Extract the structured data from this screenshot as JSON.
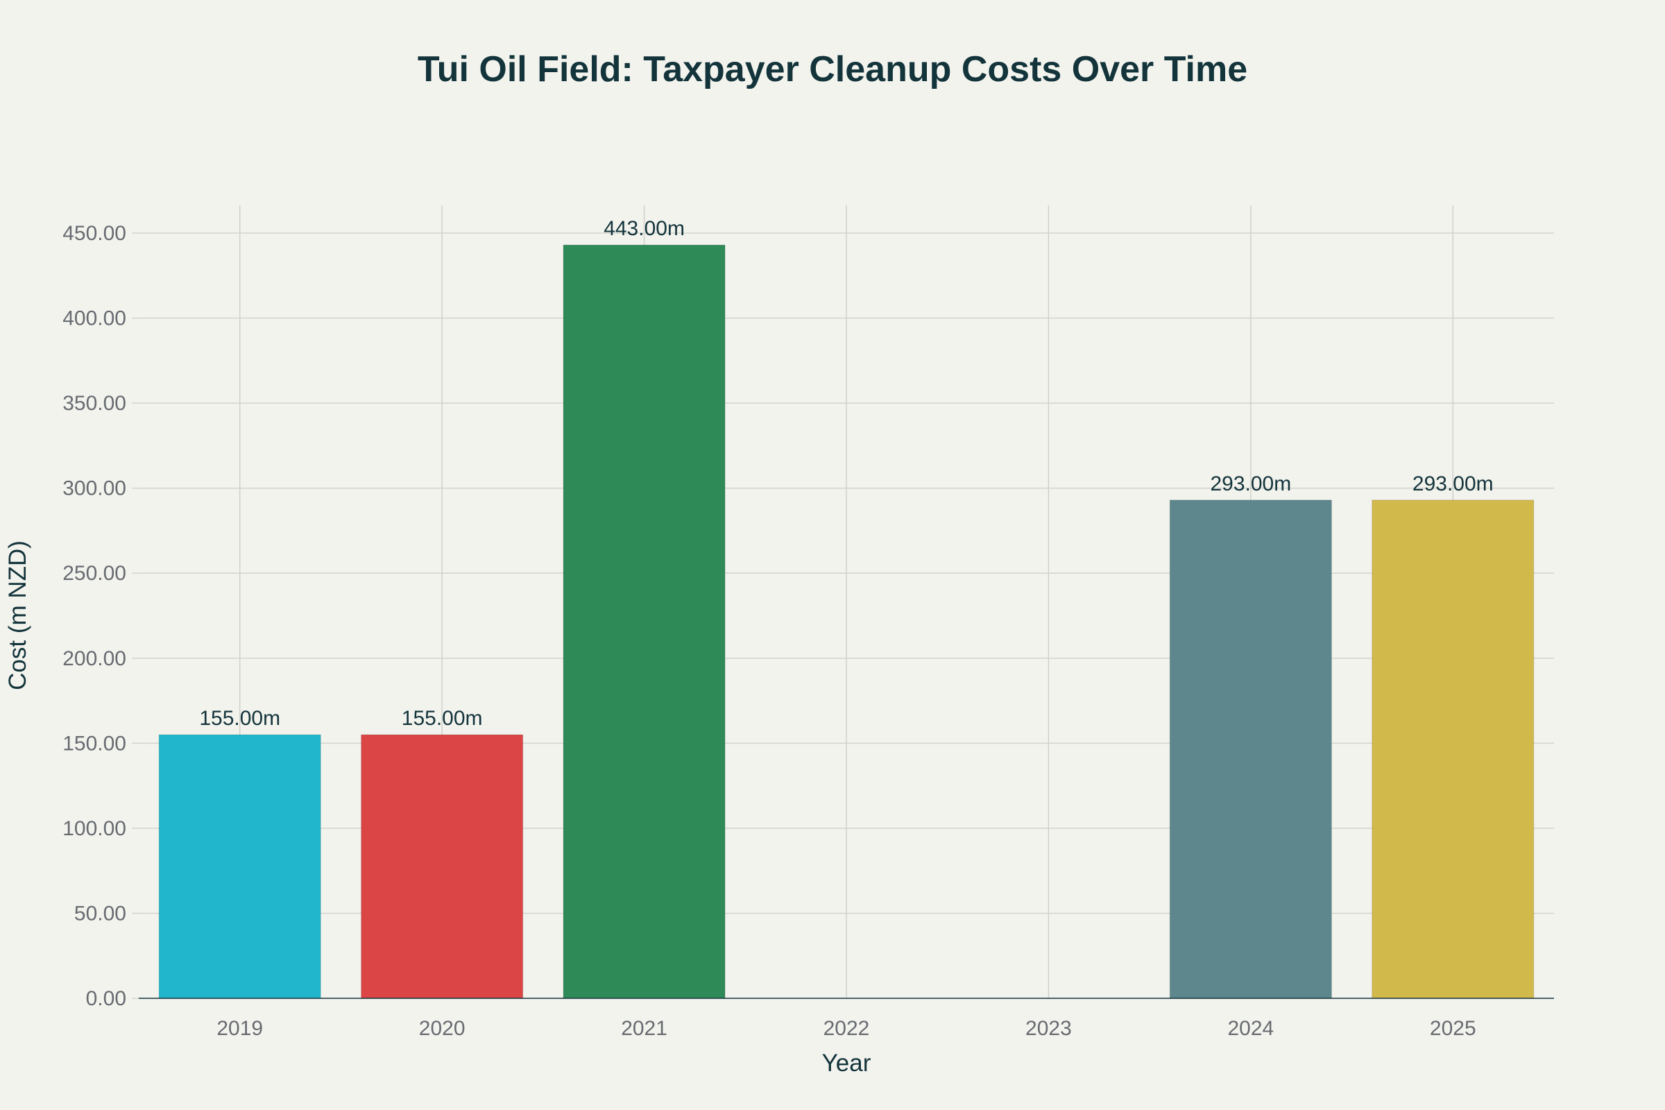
{
  "chart_data": {
    "type": "bar",
    "title": "Tui Oil Field: Taxpayer Cleanup Costs Over Time",
    "xlabel": "Year",
    "ylabel": "Cost (m NZD)",
    "categories": [
      "2019",
      "2020",
      "2021",
      "2022",
      "2023",
      "2024",
      "2025"
    ],
    "values": [
      155,
      155,
      443,
      null,
      null,
      293,
      293
    ],
    "data_labels": [
      "155.00m",
      "155.00m",
      "443.00m",
      "",
      "",
      "293.00m",
      "293.00m"
    ],
    "colors": [
      "#21b6cc",
      "#db4545",
      "#2e8a57",
      null,
      null,
      "#5d878d",
      "#d2b94b"
    ],
    "ylim": [
      0,
      465
    ],
    "yticks": [
      0,
      50,
      100,
      150,
      200,
      250,
      300,
      350,
      400,
      450
    ],
    "ytick_labels": [
      "0.00",
      "50.00",
      "100.00",
      "150.00",
      "200.00",
      "250.00",
      "300.00",
      "350.00",
      "400.00",
      "450.00"
    ],
    "grid": true,
    "legend": "none"
  }
}
